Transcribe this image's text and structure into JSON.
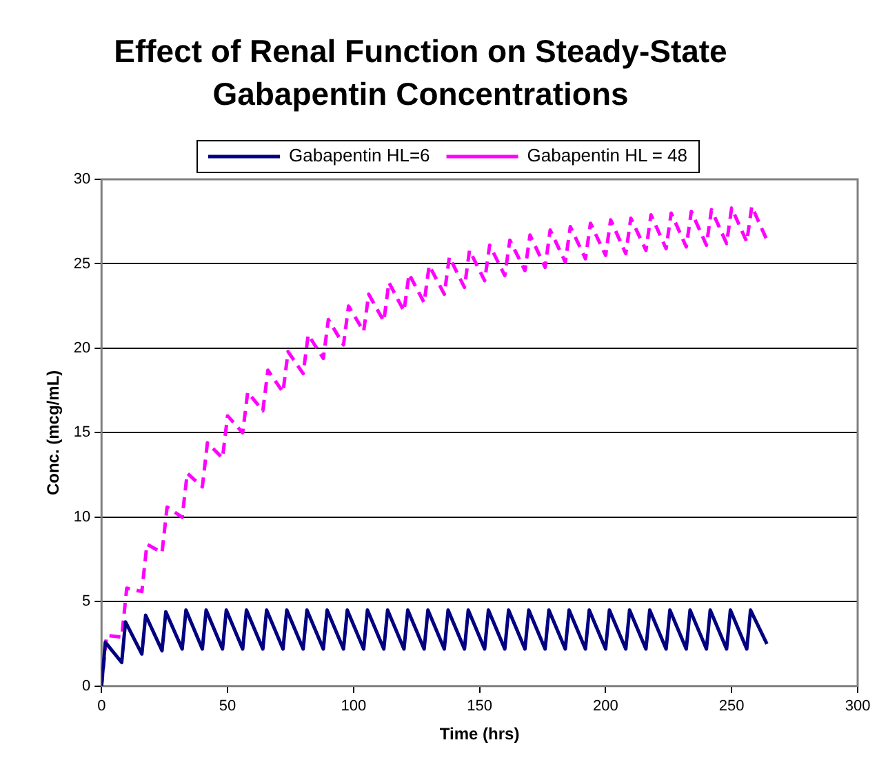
{
  "chart_data": {
    "type": "line",
    "title": "Effect of Renal Function on Steady-State Gabapentin Concentrations",
    "xlabel": "Time (hrs)",
    "ylabel": "Conc. (mcg/mL)",
    "xlim": [
      0,
      300
    ],
    "xticks": [
      0,
      50,
      100,
      150,
      200,
      250,
      300
    ],
    "ylim": [
      0,
      30
    ],
    "yticks": [
      0,
      5,
      10,
      15,
      20,
      25,
      30
    ],
    "grid": "y",
    "legend": "top",
    "marker": "none",
    "series": [
      {
        "name": "Gabapentin HL=6",
        "color": "#000080",
        "line_style": "solid",
        "x": [
          0,
          1.5,
          8,
          9.5,
          16,
          17.5,
          24,
          25.5,
          32,
          33.5,
          40,
          41.5,
          48,
          49.5,
          56,
          57.5,
          64,
          65.5,
          72,
          73.5,
          80,
          81.5,
          88,
          89.5,
          96,
          97.5,
          104,
          105.5,
          112,
          113.5,
          120,
          121.5,
          128,
          129.5,
          136,
          137.5,
          144,
          145.5,
          152,
          153.5,
          160,
          161.5,
          168,
          169.5,
          176,
          177.5,
          184,
          185.5,
          192,
          193.5,
          200,
          201.5,
          208,
          209.5,
          216,
          217.5,
          224,
          225.5,
          232,
          233.5,
          240,
          241.5,
          248,
          249.5,
          256,
          257.5,
          264
        ],
        "values": [
          0,
          2.6,
          1.4,
          3.8,
          1.9,
          4.2,
          2.1,
          4.4,
          2.2,
          4.5,
          2.2,
          4.5,
          2.2,
          4.5,
          2.2,
          4.5,
          2.2,
          4.5,
          2.2,
          4.5,
          2.2,
          4.5,
          2.2,
          4.5,
          2.2,
          4.5,
          2.2,
          4.5,
          2.2,
          4.5,
          2.2,
          4.5,
          2.2,
          4.5,
          2.2,
          4.5,
          2.2,
          4.5,
          2.2,
          4.5,
          2.2,
          4.5,
          2.2,
          4.5,
          2.2,
          4.5,
          2.2,
          4.5,
          2.2,
          4.5,
          2.2,
          4.5,
          2.2,
          4.5,
          2.2,
          4.5,
          2.2,
          4.5,
          2.2,
          4.5,
          2.2,
          4.5,
          2.2,
          4.5,
          2.2,
          4.5,
          2.5
        ]
      },
      {
        "name": "Gabapentin HL = 48",
        "color": "#ff00ff",
        "line_style": "dashed",
        "x": [
          0,
          2,
          8,
          10,
          16,
          18,
          24,
          26,
          32,
          34,
          40,
          42,
          48,
          50,
          56,
          58,
          64,
          66,
          72,
          74,
          80,
          82,
          88,
          90,
          96,
          98,
          104,
          106,
          112,
          114,
          120,
          122,
          128,
          130,
          136,
          138,
          144,
          146,
          152,
          154,
          160,
          162,
          168,
          170,
          176,
          178,
          184,
          186,
          192,
          194,
          200,
          202,
          208,
          210,
          216,
          218,
          224,
          226,
          232,
          234,
          240,
          242,
          248,
          250,
          256,
          258,
          264
        ],
        "values": [
          0,
          3.0,
          2.9,
          5.8,
          5.6,
          8.4,
          7.9,
          10.6,
          10.0,
          12.6,
          11.8,
          14.4,
          13.5,
          16.0,
          15.0,
          17.4,
          16.3,
          18.7,
          17.4,
          19.8,
          18.5,
          20.8,
          19.4,
          21.7,
          20.2,
          22.5,
          21.0,
          23.2,
          21.6,
          23.9,
          22.2,
          24.4,
          22.7,
          24.9,
          23.2,
          25.4,
          23.6,
          25.8,
          24.0,
          26.1,
          24.3,
          26.4,
          24.6,
          26.7,
          24.8,
          27.0,
          25.1,
          27.2,
          25.3,
          27.4,
          25.5,
          27.6,
          25.6,
          27.7,
          25.8,
          27.9,
          25.9,
          28.0,
          26.0,
          28.1,
          26.1,
          28.2,
          26.2,
          28.3,
          26.3,
          28.4,
          26.4
        ]
      }
    ]
  }
}
